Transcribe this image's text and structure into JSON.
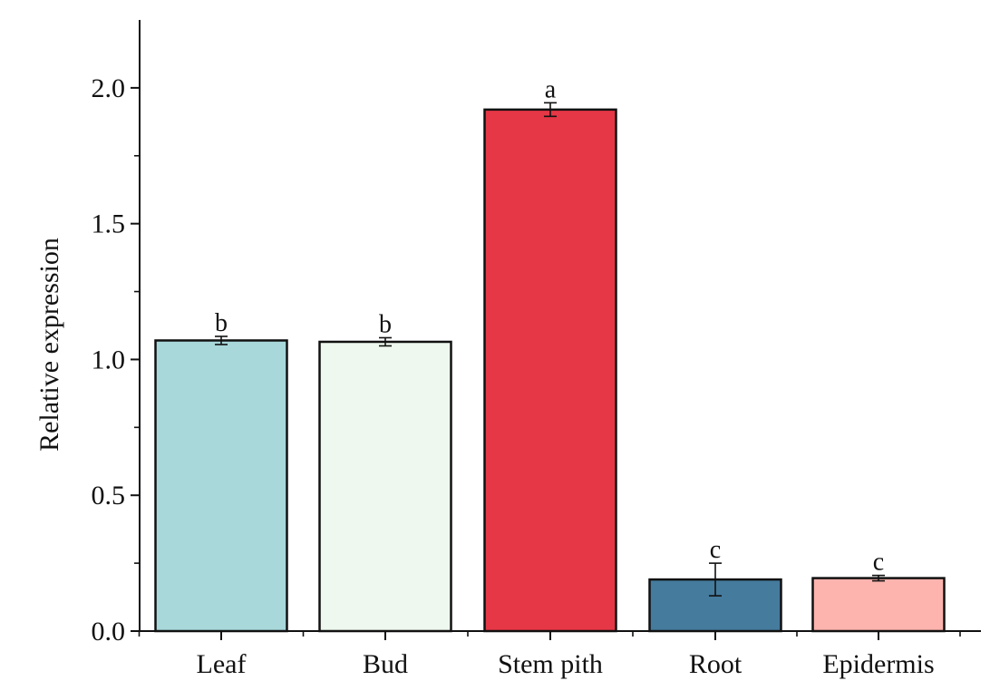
{
  "chart_data": {
    "type": "bar",
    "title": "",
    "xlabel": "",
    "ylabel": "Relative expression",
    "ylim": [
      0,
      2.25
    ],
    "yticks": [
      0.0,
      0.5,
      1.0,
      1.5,
      2.0
    ],
    "ytick_labels": [
      "0.0",
      "0.5",
      "1.0",
      "1.5",
      "2.0"
    ],
    "grid": false,
    "legend": "none",
    "categories": [
      "Leaf",
      "Bud",
      "Stem pith",
      "Root",
      "Epidermis"
    ],
    "values": [
      1.07,
      1.065,
      1.92,
      0.19,
      0.195
    ],
    "errors": [
      0.015,
      0.015,
      0.025,
      0.06,
      0.01
    ],
    "significance": [
      "b",
      "b",
      "a",
      "c",
      "c"
    ],
    "colors": [
      "#a8d8da",
      "#eef8ee",
      "#e63746",
      "#457b9d",
      "#fdb3ae"
    ],
    "edge_color": "#111111"
  }
}
